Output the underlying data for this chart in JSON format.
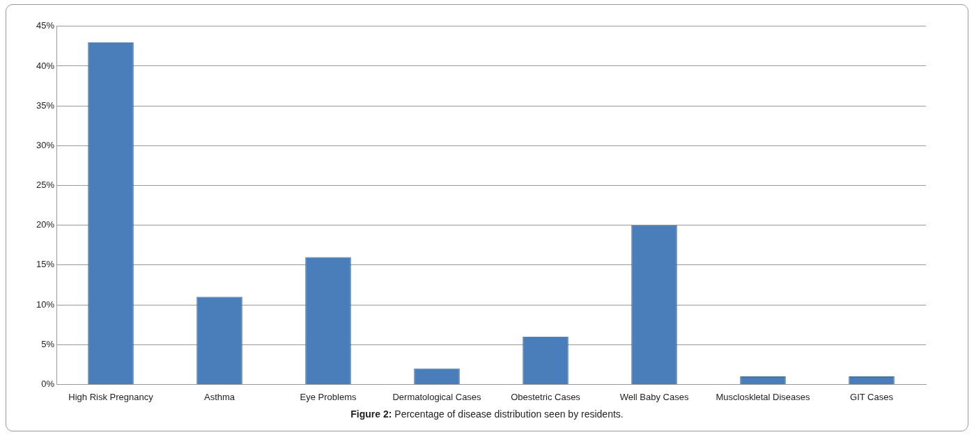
{
  "chart_data": {
    "type": "bar",
    "categories": [
      "High Risk Pregnancy",
      "Asthma",
      "Eye Problems",
      "Dermatological Cases",
      "Obestetric Cases",
      "Well Baby Cases",
      "Muscloskletal Diseases",
      "GIT Cases"
    ],
    "values": [
      43,
      11,
      16,
      2,
      6,
      20,
      1,
      1
    ],
    "color": "#4a7ebb",
    "ylim": [
      0,
      45
    ],
    "yticks": [
      {
        "value": 0,
        "label": "0%"
      },
      {
        "value": 5,
        "label": "5%"
      },
      {
        "value": 10,
        "label": "10%"
      },
      {
        "value": 15,
        "label": "15%"
      },
      {
        "value": 20,
        "label": "20%"
      },
      {
        "value": 25,
        "label": "25%"
      },
      {
        "value": 30,
        "label": "30%"
      },
      {
        "value": 35,
        "label": "35%"
      },
      {
        "value": 40,
        "label": "40%"
      },
      {
        "value": 45,
        "label": "45%"
      }
    ],
    "grid": "y",
    "annotations": [
      "Figure 2: Percentage of disease distribution seen by residents."
    ]
  }
}
